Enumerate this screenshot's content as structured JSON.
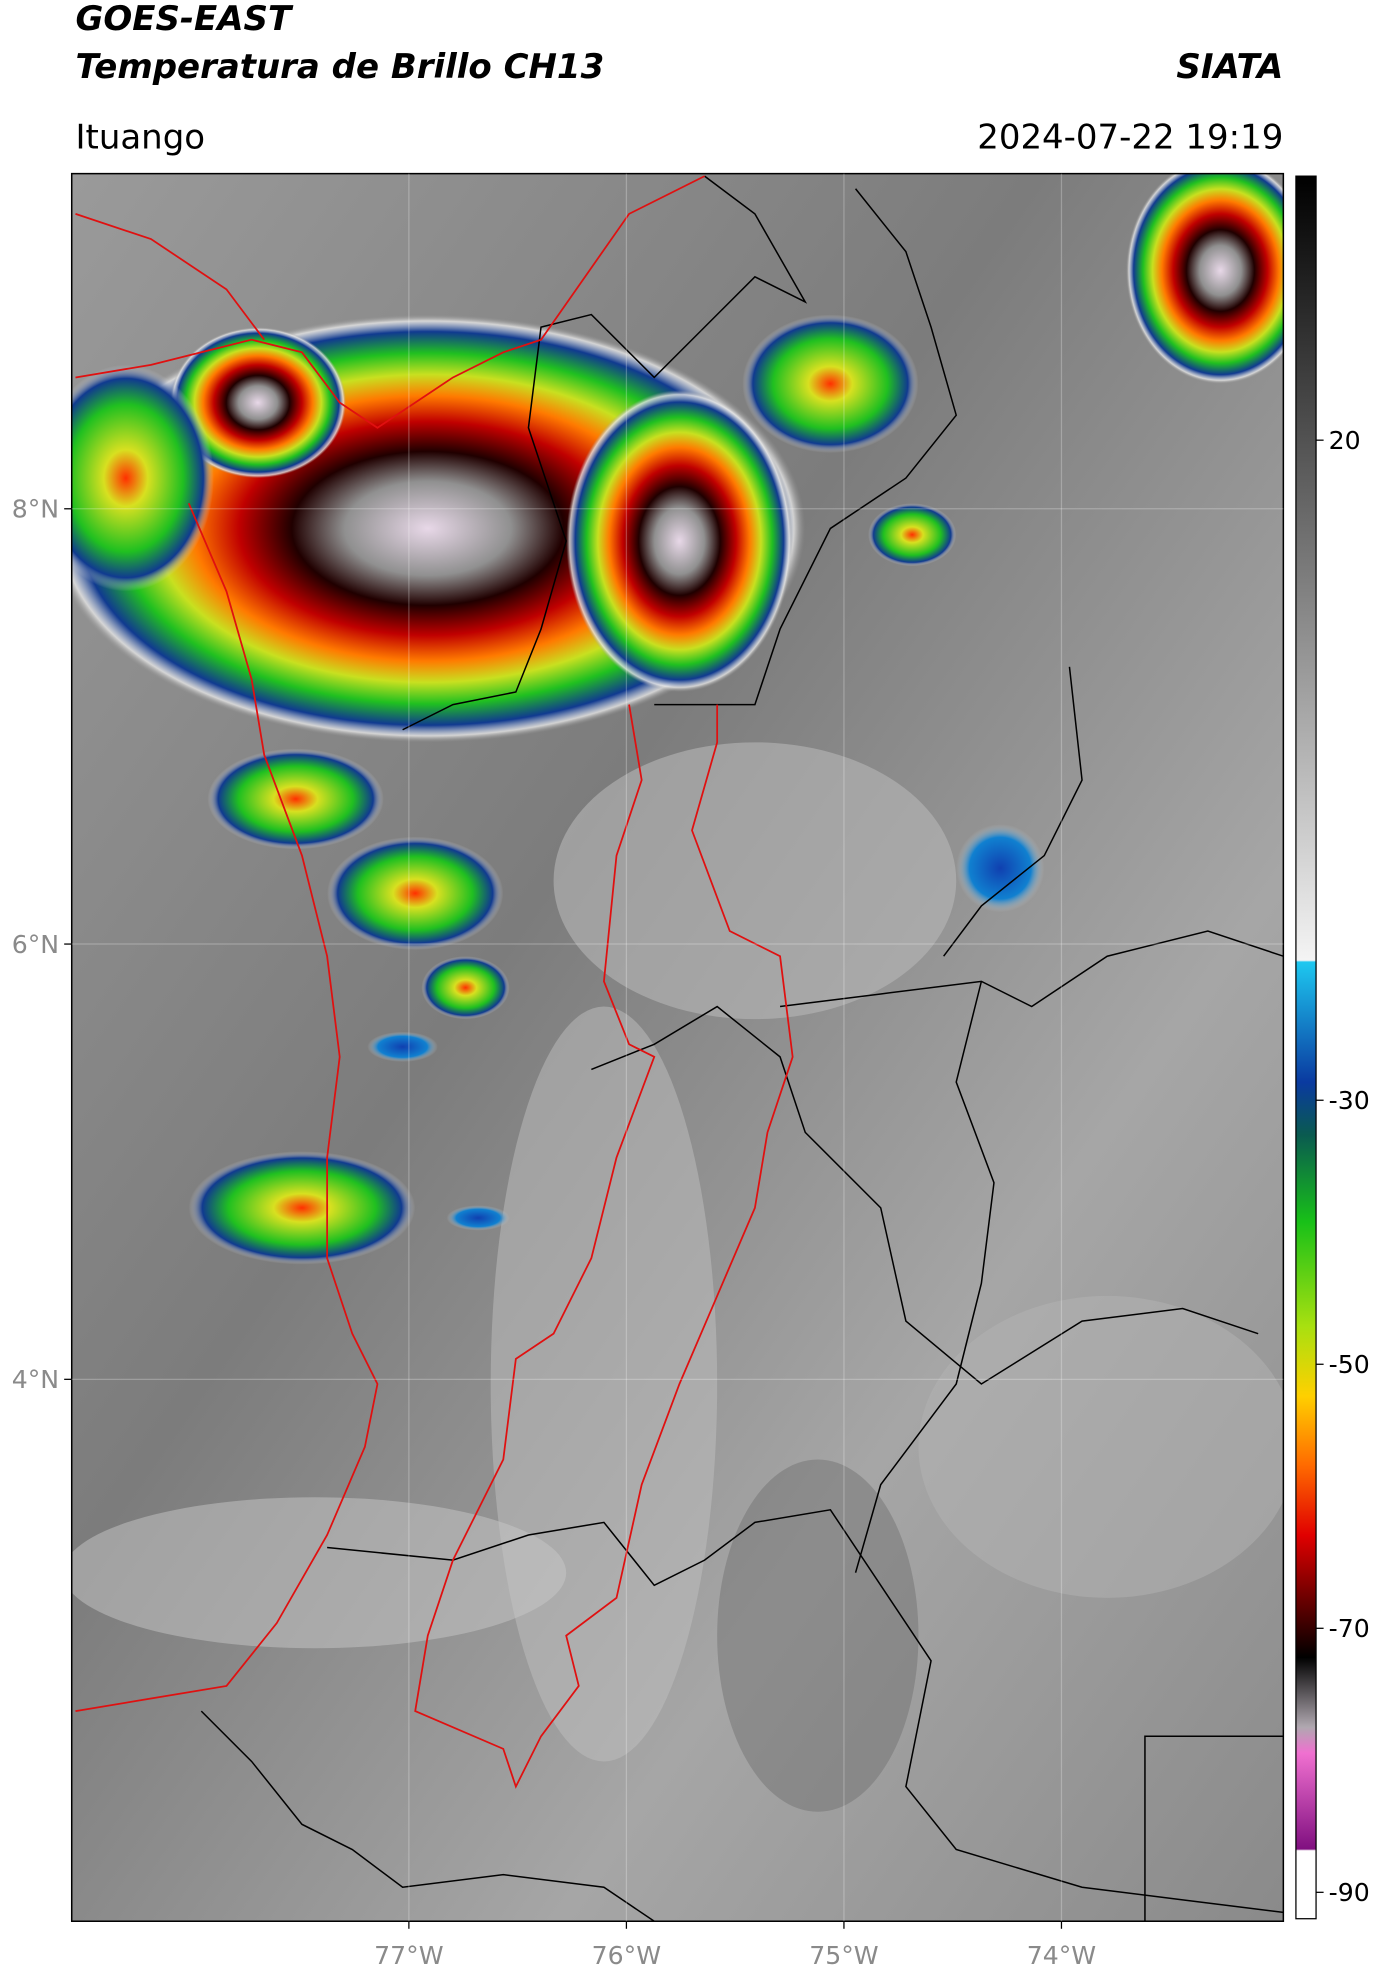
{
  "header": {
    "satellite": "GOES-EAST",
    "product": "Temperatura de Brillo CH13",
    "agency": "SIATA",
    "region": "Ituango",
    "datetime": "2024-07-22 19:19"
  },
  "map": {
    "xlim": [
      -78.55,
      -72.98
    ],
    "ylim": [
      1.51,
      9.54
    ],
    "xticks": [
      {
        "value": -77,
        "label": "77°W"
      },
      {
        "value": -76,
        "label": "76°W"
      },
      {
        "value": -75,
        "label": "75°W"
      },
      {
        "value": -74,
        "label": "74°W"
      }
    ],
    "yticks": [
      {
        "value": 8,
        "label": "8°N"
      },
      {
        "value": 6,
        "label": "6°N"
      },
      {
        "value": 4,
        "label": "4°N"
      }
    ],
    "grid": true
  },
  "colorbar": {
    "lim": [
      -92,
      40
    ],
    "ticks": [
      20,
      -30,
      -50,
      -70,
      -90
    ]
  }
}
